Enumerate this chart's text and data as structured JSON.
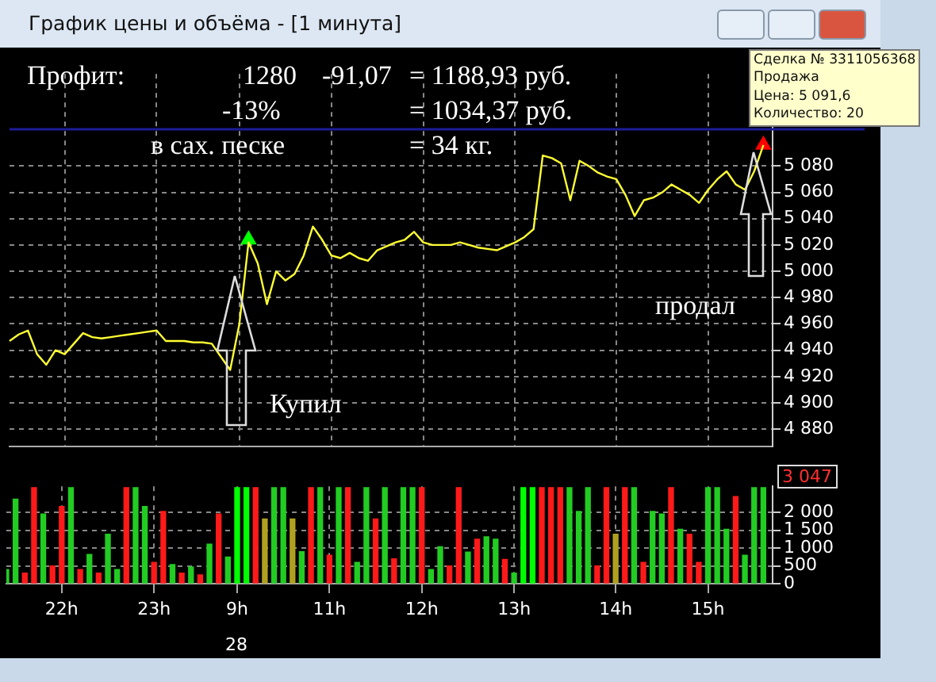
{
  "chart_data": [
    {
      "type": "line",
      "title": "График цены и объёма - [1 минута]",
      "annotations": [
        "Профит:",
        "1280",
        "-91,07",
        "= 1188,93 руб.",
        "-13%",
        "= 1034,37 руб.",
        "в сах. песке",
        "=  34 кг.",
        "Купил",
        "продал",
        "Сделка № 3311056368",
        "Продажа",
        "Цена: 5 091,6",
        "Количество: 20"
      ],
      "categories": [
        null,
        null,
        null,
        null,
        null,
        null,
        null,
        null,
        null,
        null,
        null,
        null,
        null,
        null,
        null,
        null,
        null,
        null,
        null,
        null,
        null,
        null,
        null,
        null,
        null,
        null,
        null,
        null,
        null,
        null,
        null,
        null,
        null,
        null,
        null,
        null,
        null,
        null,
        null,
        null,
        null,
        null,
        null,
        null,
        null,
        null,
        null,
        null,
        null,
        null,
        null,
        null,
        null,
        null,
        null,
        null,
        null,
        null,
        null,
        null,
        null,
        null,
        null,
        null,
        null,
        null,
        null,
        null,
        null,
        null,
        null,
        null,
        null,
        null,
        null,
        null,
        null,
        null,
        null,
        null,
        null,
        null,
        null,
        null
      ],
      "series": [
        {
          "color": "#ffff33",
          "values": [
            4947,
            4952,
            4955,
            4937,
            4929,
            4940,
            4937,
            4945,
            4953,
            4950,
            4949,
            4950,
            4951,
            4952,
            4953,
            4954,
            4955,
            4947,
            4947,
            4947,
            4946,
            4946,
            4945,
            4935,
            4925,
            4960,
            5022,
            5006,
            4975,
            5000,
            4993,
            4998,
            5012,
            5034,
            5024,
            5012,
            5010,
            5014,
            5010,
            5008,
            5016,
            5019,
            5022,
            5024,
            5030,
            5022,
            5020,
            5020,
            5020,
            5022,
            5020,
            5018,
            5017,
            5016,
            5019,
            5022,
            5026,
            5032,
            5088,
            5086,
            5082,
            5054,
            5084,
            5080,
            5075,
            5072,
            5070,
            5058,
            5042,
            5054,
            5056,
            5060,
            5066,
            5062,
            5058,
            5052,
            5062,
            5070,
            5076,
            5066,
            5062,
            5076,
            5096,
            null
          ]
        },
        {
          "type": "scatter",
          "color": "#00ff00",
          "marker": "triangle",
          "values": [
            null,
            null,
            null,
            null,
            null,
            null,
            null,
            null,
            null,
            null,
            null,
            null,
            null,
            null,
            null,
            null,
            null,
            null,
            null,
            null,
            null,
            null,
            null,
            null,
            null,
            null,
            5024,
            null,
            null,
            null,
            null,
            null,
            null,
            null,
            null,
            null,
            null,
            null,
            null,
            null,
            null,
            null,
            null,
            null,
            null,
            null,
            null,
            null,
            null,
            null,
            null,
            null,
            null,
            null,
            null,
            null,
            null,
            null,
            null,
            null,
            null,
            null,
            null,
            null,
            null,
            null,
            null,
            null,
            null,
            null,
            null,
            null,
            null,
            null,
            null,
            null,
            null,
            null,
            null,
            null,
            null,
            null,
            null,
            null
          ]
        },
        {
          "type": "scatter",
          "color": "#ff0000",
          "marker": "triangle",
          "values": [
            null,
            null,
            null,
            null,
            null,
            null,
            null,
            null,
            null,
            null,
            null,
            null,
            null,
            null,
            null,
            null,
            null,
            null,
            null,
            null,
            null,
            null,
            null,
            null,
            null,
            null,
            null,
            null,
            null,
            null,
            null,
            null,
            null,
            null,
            null,
            null,
            null,
            null,
            null,
            null,
            null,
            null,
            null,
            null,
            null,
            null,
            null,
            null,
            null,
            null,
            null,
            null,
            null,
            null,
            null,
            null,
            null,
            null,
            null,
            null,
            null,
            null,
            null,
            null,
            null,
            null,
            null,
            null,
            null,
            null,
            null,
            null,
            null,
            null,
            null,
            null,
            null,
            null,
            null,
            null,
            null,
            null,
            5096,
            null
          ]
        }
      ],
      "ylim": [
        4867,
        5150
      ],
      "yticks": [
        {
          "value": 4880,
          "label": "4 880"
        },
        {
          "value": 4900,
          "label": "4 900"
        },
        {
          "value": 4920,
          "label": "4 920"
        },
        {
          "value": 4940,
          "label": "4 940"
        },
        {
          "value": 4960,
          "label": "4 960"
        },
        {
          "value": 4980,
          "label": "4 980"
        },
        {
          "value": 5000,
          "label": "5 000"
        },
        {
          "value": 5020,
          "label": "5 020"
        },
        {
          "value": 5040,
          "label": "5 040"
        },
        {
          "value": 5060,
          "label": "5 060"
        },
        {
          "value": 5080,
          "label": "5 080"
        }
      ],
      "ref_lines": [
        {
          "axis": "y",
          "value": 5108,
          "color": "#1c1c99"
        }
      ],
      "grid": true,
      "line_style": "solid",
      "tick_labels": "y",
      "legend": false
    },
    {
      "type": "bar",
      "annotations": [
        "3 047",
        "28"
      ],
      "categories": [
        null,
        null,
        null,
        null,
        null,
        null,
        "22h",
        null,
        null,
        null,
        null,
        null,
        null,
        null,
        null,
        null,
        "23h",
        null,
        null,
        null,
        null,
        null,
        null,
        null,
        null,
        "9h",
        null,
        null,
        null,
        null,
        null,
        null,
        null,
        null,
        null,
        "11h",
        null,
        null,
        null,
        null,
        null,
        null,
        null,
        null,
        null,
        "12h",
        null,
        null,
        null,
        null,
        null,
        null,
        null,
        null,
        null,
        "13h",
        null,
        null,
        null,
        null,
        null,
        null,
        null,
        null,
        null,
        null,
        "14h",
        null,
        null,
        null,
        null,
        null,
        null,
        null,
        null,
        null,
        "15h",
        null,
        null,
        null,
        null,
        null,
        null,
        null
      ],
      "values": [
        400,
        2380,
        300,
        2700,
        1960,
        500,
        2170,
        2700,
        400,
        820,
        300,
        1390,
        400,
        2700,
        2700,
        2170,
        600,
        2030,
        540,
        300,
        470,
        250,
        1110,
        1960,
        750,
        2700,
        2700,
        2700,
        1820,
        2700,
        2700,
        1820,
        900,
        2700,
        2700,
        800,
        2700,
        2700,
        600,
        2700,
        1820,
        2700,
        700,
        2700,
        2700,
        2700,
        400,
        1040,
        500,
        2700,
        890,
        1250,
        1320,
        1250,
        680,
        300,
        2700,
        2700,
        2700,
        2700,
        2700,
        2700,
        2030,
        2700,
        500,
        2700,
        1390,
        2700,
        2700,
        600,
        2030,
        1960,
        2700,
        1530,
        1390,
        600,
        2700,
        2700,
        1530,
        2450,
        800,
        2700,
        2700,
        null
      ],
      "colors": [
        "#22cc22",
        "#22cc22",
        "#ff1a1a",
        "#ff1a1a",
        "#22cc22",
        "#ff1a1a",
        "#ff1a1a",
        "#22cc22",
        "#ff1a1a",
        "#22cc22",
        "#ff1a1a",
        "#22cc22",
        "#22cc22",
        "#ff1a1a",
        "#22cc22",
        "#22cc22",
        "#ff1a1a",
        "#ff1a1a",
        "#22cc22",
        "#ff1a1a",
        "#22cc22",
        "#ff1a1a",
        "#22cc22",
        "#ff1a1a",
        "#22cc22",
        "#00ff00",
        "#00ff00",
        "#ff1a1a",
        "#b0a020",
        "#22cc22",
        "#22cc22",
        "#b0a020",
        "#22cc22",
        "#ff1a1a",
        "#22cc22",
        "#ff1a1a",
        "#22cc22",
        "#ff1a1a",
        "#22cc22",
        "#22cc22",
        "#ff1a1a",
        "#22cc22",
        "#ff1a1a",
        "#22cc22",
        "#22cc22",
        "#ff1a1a",
        "#22cc22",
        "#22cc22",
        "#ff1a1a",
        "#ff1a1a",
        "#22cc22",
        "#ff1a1a",
        "#22cc22",
        "#22cc22",
        "#ff1a1a",
        "#22cc22",
        "#00ff00",
        "#00ff00",
        "#ff1a1a",
        "#ff1a1a",
        "#ff1a1a",
        "#22cc22",
        "#22cc22",
        "#22cc22",
        "#ff1a1a",
        "#ff1a1a",
        "#b0a020",
        "#ff1a1a",
        "#22cc22",
        "#ff1a1a",
        "#22cc22",
        "#22cc22",
        "#ff1a1a",
        "#22cc22",
        "#ff1a1a",
        "#ff1a1a",
        "#22cc22",
        "#22cc22",
        "#22cc22",
        "#ff1a1a",
        "#22cc22",
        "#22cc22",
        "#22cc22",
        "#22cc22"
      ],
      "ylim": [
        0,
        2740
      ],
      "yticks": [
        0,
        500,
        {
          "value": 1000,
          "label": "1 000"
        },
        {
          "value": 1500,
          "label": "1 500"
        },
        {
          "value": 2000,
          "label": "2 000"
        }
      ],
      "grid": true,
      "legend": false
    }
  ]
}
